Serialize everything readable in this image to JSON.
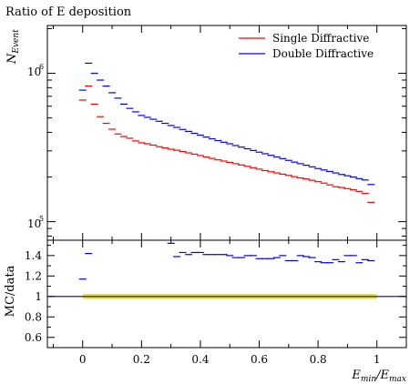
{
  "chart_data": [
    {
      "type": "scatter",
      "title": "Ratio of E deposition",
      "ylabel": "N_Event",
      "yscale": "log",
      "ylim": [
        75000,
        2100000
      ],
      "xlim": [
        -0.12,
        1.1
      ],
      "ytick_labels": [
        {
          "value": 100000,
          "base": "10",
          "exp": "5"
        },
        {
          "value": 1000000,
          "base": "10",
          "exp": "6"
        }
      ],
      "legend_position": "top-right",
      "series": [
        {
          "name": "Single Diffractive",
          "color": "#ff0000",
          "x": [
            0.0,
            0.02,
            0.04,
            0.06,
            0.08,
            0.1,
            0.12,
            0.14,
            0.16,
            0.18,
            0.2,
            0.22,
            0.24,
            0.26,
            0.28,
            0.3,
            0.32,
            0.34,
            0.36,
            0.38,
            0.4,
            0.42,
            0.44,
            0.46,
            0.48,
            0.5,
            0.52,
            0.54,
            0.56,
            0.58,
            0.6,
            0.62,
            0.64,
            0.66,
            0.68,
            0.7,
            0.72,
            0.74,
            0.76,
            0.78,
            0.8,
            0.82,
            0.84,
            0.86,
            0.88,
            0.9,
            0.92,
            0.94,
            0.96,
            0.98
          ],
          "y": [
            660000,
            820000,
            620000,
            510000,
            460000,
            420000,
            390000,
            375000,
            365000,
            350000,
            340000,
            335000,
            328000,
            320000,
            314000,
            308000,
            303000,
            297000,
            291000,
            285000,
            279000,
            273000,
            267000,
            261000,
            256000,
            251000,
            246000,
            241000,
            236000,
            231000,
            226000,
            221000,
            217000,
            213000,
            209000,
            205000,
            201000,
            197000,
            194000,
            190000,
            186000,
            182000,
            177000,
            172000,
            170000,
            167000,
            164000,
            160000,
            155000,
            135000
          ]
        },
        {
          "name": "Double Diffractive",
          "color": "#0000ff",
          "x": [
            0.0,
            0.02,
            0.04,
            0.06,
            0.08,
            0.1,
            0.12,
            0.14,
            0.16,
            0.18,
            0.2,
            0.22,
            0.24,
            0.26,
            0.28,
            0.3,
            0.32,
            0.34,
            0.36,
            0.38,
            0.4,
            0.42,
            0.44,
            0.46,
            0.48,
            0.5,
            0.52,
            0.54,
            0.56,
            0.58,
            0.6,
            0.62,
            0.64,
            0.66,
            0.68,
            0.7,
            0.72,
            0.74,
            0.76,
            0.78,
            0.8,
            0.82,
            0.84,
            0.86,
            0.88,
            0.9,
            0.92,
            0.94,
            0.96,
            0.98
          ],
          "y": [
            770000,
            1170000,
            1000000,
            900000,
            820000,
            740000,
            680000,
            620000,
            580000,
            550000,
            520000,
            505000,
            490000,
            475000,
            460000,
            445000,
            432000,
            418000,
            406000,
            394000,
            383000,
            372000,
            362000,
            352000,
            343000,
            335000,
            326000,
            318000,
            310000,
            302000,
            294000,
            287000,
            280000,
            273000,
            266000,
            259000,
            252000,
            246000,
            240000,
            234000,
            228000,
            223000,
            218000,
            213000,
            208000,
            204000,
            200000,
            195000,
            191000,
            178000
          ]
        }
      ]
    },
    {
      "type": "scatter",
      "ylabel": "MC/data",
      "xlabel_main": "E",
      "xlabel_main_sub": "min",
      "xlabel_sep": "/E",
      "xlabel_den_sub": "max",
      "ylim": [
        0.5,
        1.55
      ],
      "xlim": [
        -0.12,
        1.1
      ],
      "yticks": [
        0.6,
        0.8,
        1,
        1.2,
        1.4
      ],
      "ytick_labels": [
        "0.6",
        "0.8",
        "1",
        "1.2",
        "1.4"
      ],
      "xticks": [
        0,
        0.2,
        0.4,
        0.6,
        0.8,
        1
      ],
      "xtick_labels": [
        "0",
        "0.2",
        "0.4",
        "0.6",
        "0.8",
        "1"
      ],
      "reference_band": {
        "x_range": [
          0,
          1
        ],
        "y_range": [
          0.99,
          1.01
        ],
        "color": "#e8e000"
      },
      "reference_line": {
        "y": 1,
        "color": "#0000aa"
      },
      "series": [
        {
          "color": "#0000ff",
          "x": [
            0.0,
            0.02,
            0.3,
            0.32,
            0.34,
            0.36,
            0.38,
            0.4,
            0.42,
            0.44,
            0.46,
            0.48,
            0.5,
            0.52,
            0.54,
            0.56,
            0.58,
            0.6,
            0.62,
            0.64,
            0.66,
            0.68,
            0.7,
            0.72,
            0.74,
            0.76,
            0.78,
            0.8,
            0.82,
            0.84,
            0.86,
            0.88,
            0.9,
            0.92,
            0.94,
            0.96,
            0.98
          ],
          "y": [
            1.17,
            1.42,
            1.52,
            1.39,
            1.43,
            1.41,
            1.43,
            1.43,
            1.41,
            1.41,
            1.41,
            1.41,
            1.4,
            1.38,
            1.38,
            1.4,
            1.4,
            1.37,
            1.37,
            1.37,
            1.38,
            1.4,
            1.35,
            1.35,
            1.4,
            1.39,
            1.38,
            1.34,
            1.33,
            1.33,
            1.36,
            1.34,
            1.4,
            1.4,
            1.33,
            1.36,
            1.35
          ]
        }
      ]
    }
  ]
}
